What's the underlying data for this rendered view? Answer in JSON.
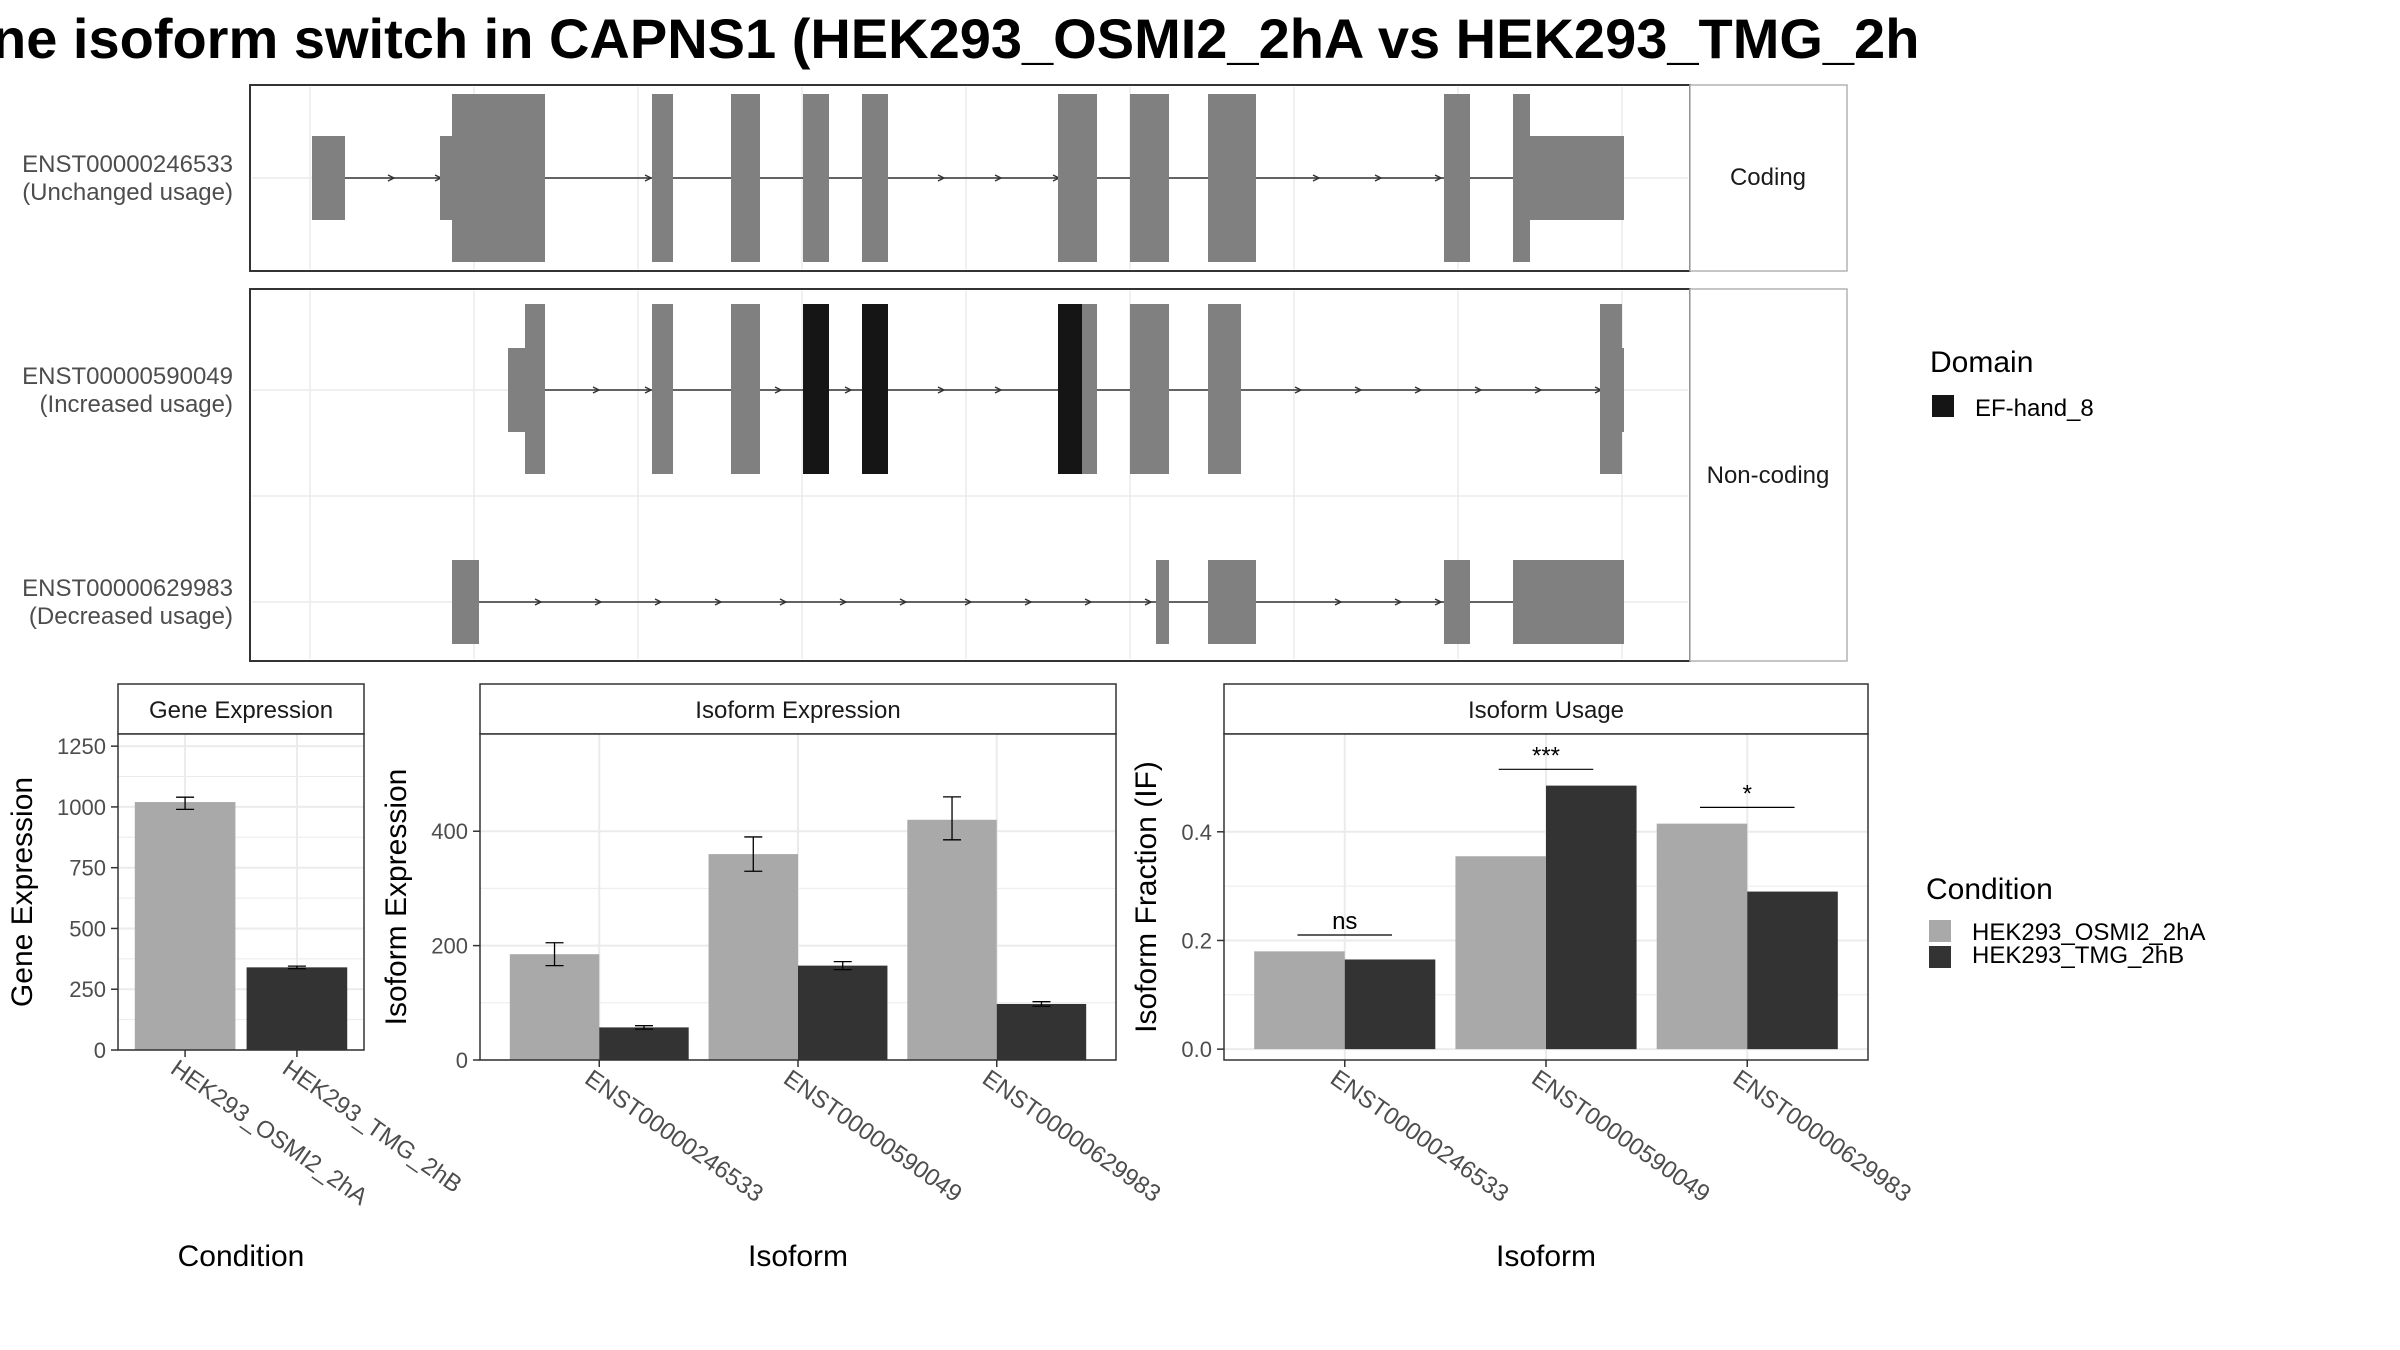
{
  "title": "ne isoform switch in CAPNS1 (HEK293_OSMI2_2hA vs HEK293_TMG_2h",
  "colors": {
    "exon": "#808080",
    "domain": "#151515",
    "condA": "#a9a9a9",
    "condB": "#333333",
    "frame": "#333333",
    "grid": "#ebebeb",
    "strip_border": "#b3b3b3"
  },
  "transcripts": {
    "facets": [
      "Coding",
      "Non-coding"
    ],
    "rows": [
      {
        "id": "ENST00000246533",
        "usage": "(Unchanged usage)"
      },
      {
        "id": "ENST00000590049",
        "usage": "(Increased usage)"
      },
      {
        "id": "ENST00000629983",
        "usage": "(Decreased usage)"
      }
    ]
  },
  "legends": {
    "domain": {
      "title": "Domain",
      "items": [
        {
          "label": "EF-hand_8",
          "color": "#151515"
        }
      ]
    },
    "condition": {
      "title": "Condition",
      "items": [
        {
          "label": "HEK293_OSMI2_2hA",
          "color": "#a9a9a9"
        },
        {
          "label": "HEK293_TMG_2hB",
          "color": "#333333"
        }
      ]
    }
  },
  "chart_data": [
    {
      "type": "bar",
      "title": "Gene Expression",
      "xlabel": "Condition",
      "ylabel": "Gene Expression",
      "ylim": [
        0,
        1300
      ],
      "yticks": [
        0,
        250,
        500,
        750,
        1000,
        1250
      ],
      "ytick_labels": [
        "0",
        "250",
        "500",
        "750",
        "1000",
        "1250"
      ],
      "categories": [
        "HEK293_OSMI2_2hA",
        "HEK293_TMG_2hB"
      ],
      "values": [
        1020,
        340
      ],
      "err_low": [
        990,
        335
      ],
      "err_high": [
        1040,
        345
      ]
    },
    {
      "type": "bar",
      "title": "Isoform Expression",
      "xlabel": "Isoform",
      "ylabel": "Isoform Expression",
      "ylim": [
        0,
        570
      ],
      "yticks": [
        0,
        200,
        400
      ],
      "ytick_labels": [
        "0",
        "200",
        "400"
      ],
      "categories": [
        "ENST00000246533",
        "ENST00000590049",
        "ENST00000629983"
      ],
      "series": [
        {
          "name": "HEK293_OSMI2_2hA",
          "values": [
            185,
            360,
            420
          ],
          "err_low": [
            165,
            330,
            385
          ],
          "err_high": [
            205,
            390,
            460
          ]
        },
        {
          "name": "HEK293_TMG_2hB",
          "values": [
            57,
            165,
            98
          ],
          "err_low": [
            54,
            158,
            94
          ],
          "err_high": [
            60,
            172,
            102
          ]
        }
      ]
    },
    {
      "type": "bar",
      "title": "Isoform Usage",
      "xlabel": "Isoform",
      "ylabel": "Isoform Fraction (IF)",
      "ylim": [
        -0.02,
        0.58
      ],
      "yticks": [
        0.0,
        0.2,
        0.4
      ],
      "ytick_labels": [
        "0.0",
        "0.2",
        "0.4"
      ],
      "categories": [
        "ENST00000246533",
        "ENST00000590049",
        "ENST00000629983"
      ],
      "series": [
        {
          "name": "HEK293_OSMI2_2hA",
          "values": [
            0.18,
            0.355,
            0.415
          ]
        },
        {
          "name": "HEK293_TMG_2hB",
          "values": [
            0.165,
            0.485,
            0.29
          ]
        }
      ],
      "significance": [
        "ns",
        "***",
        "*"
      ]
    }
  ]
}
